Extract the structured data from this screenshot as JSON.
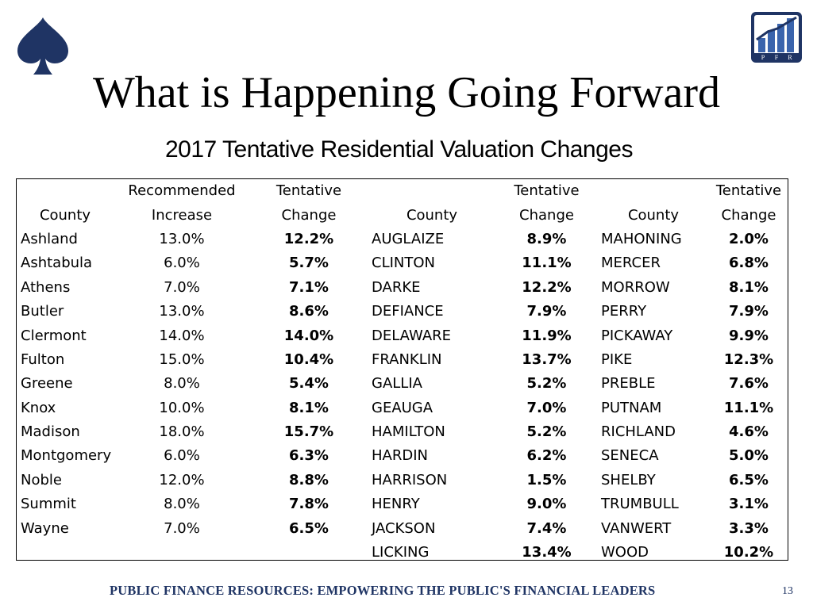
{
  "header": {
    "title": "What is Happening Going Forward",
    "subtitle": "2017 Tentative Residential Valuation Changes",
    "spade_icon": "spade-icon",
    "logo_icon": "pfr-logo-icon",
    "logo_letters": [
      "P",
      "F",
      "R"
    ]
  },
  "colors": {
    "navy": "#1f3464"
  },
  "table": {
    "header_row1": [
      "",
      "Recommended",
      "Tentative",
      "",
      "Tentative",
      "",
      "Tentative"
    ],
    "header_row2": [
      "County",
      "Increase",
      "Change",
      "County",
      "Change",
      "County",
      "Change"
    ],
    "rows": [
      [
        "Ashland",
        "13.0%",
        "12.2%",
        "AUGLAIZE",
        "8.9%",
        "MAHONING",
        "2.0%"
      ],
      [
        "Ashtabula",
        "6.0%",
        "5.7%",
        "CLINTON",
        "11.1%",
        "MERCER",
        "6.8%"
      ],
      [
        "Athens",
        "7.0%",
        "7.1%",
        "DARKE",
        "12.2%",
        "MORROW",
        "8.1%"
      ],
      [
        "Butler",
        "13.0%",
        "8.6%",
        "DEFIANCE",
        "7.9%",
        "PERRY",
        "7.9%"
      ],
      [
        "Clermont",
        "14.0%",
        "14.0%",
        "DELAWARE",
        "11.9%",
        "PICKAWAY",
        "9.9%"
      ],
      [
        "Fulton",
        "15.0%",
        "10.4%",
        "FRANKLIN",
        "13.7%",
        "PIKE",
        "12.3%"
      ],
      [
        "Greene",
        "8.0%",
        "5.4%",
        "GALLIA",
        "5.2%",
        "PREBLE",
        "7.6%"
      ],
      [
        "Knox",
        "10.0%",
        "8.1%",
        "GEAUGA",
        "7.0%",
        "PUTNAM",
        "11.1%"
      ],
      [
        "Madison",
        "18.0%",
        "15.7%",
        "HAMILTON",
        "5.2%",
        "RICHLAND",
        "4.6%"
      ],
      [
        "Montgomery",
        "6.0%",
        "6.3%",
        "HARDIN",
        "6.2%",
        "SENECA",
        "5.0%"
      ],
      [
        "Noble",
        "12.0%",
        "8.8%",
        "HARRISON",
        "1.5%",
        "SHELBY",
        "6.5%"
      ],
      [
        "Summit",
        "8.0%",
        "7.8%",
        "HENRY",
        "9.0%",
        "TRUMBULL",
        "3.1%"
      ],
      [
        "Wayne",
        "7.0%",
        "6.5%",
        "JACKSON",
        "7.4%",
        "VANWERT",
        "3.3%"
      ],
      [
        "",
        "",
        "",
        "LICKING",
        "13.4%",
        "WOOD",
        "10.2%"
      ]
    ]
  },
  "footer": {
    "text": "PUBLIC FINANCE RESOURCES: EMPOWERING THE PUBLIC'S FINANCIAL LEADERS",
    "page_number": "13"
  }
}
